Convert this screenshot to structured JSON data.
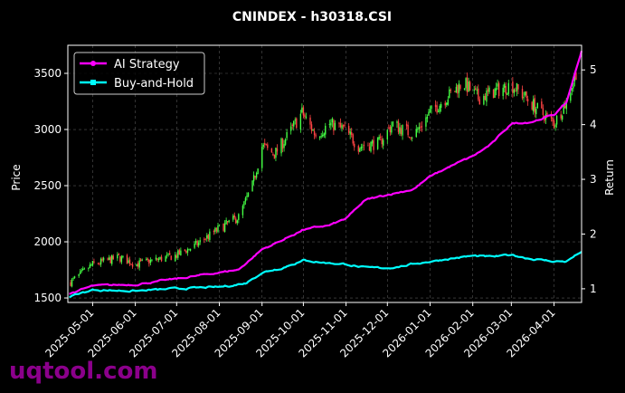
{
  "title": "CNINDEX - h30318.CSI",
  "watermark": "uqtool.com",
  "colors": {
    "background": "#000000",
    "axes": "#ffffff",
    "grid": "#555555",
    "up_candle": "#44ff44",
    "down_candle": "#ff4444",
    "ai_strategy": "#ff00ff",
    "buy_and_hold": "#00ffff",
    "watermark": "#8b008b"
  },
  "chart_data": {
    "type": "line",
    "title": "CNINDEX - h30318.CSI",
    "ylabel_left": "Price",
    "ylabel_right": "Return",
    "ylim_left": [
      1460,
      3750
    ],
    "ylim_right": [
      0.75,
      5.45
    ],
    "xlim": [
      "2025-04-13",
      "2026-04-21"
    ],
    "left_ticks": [
      1500,
      2000,
      2500,
      3000,
      3500
    ],
    "right_ticks": [
      1,
      2,
      3,
      4,
      5
    ],
    "x_tick_labels": [
      "2025-05-01",
      "2025-06-01",
      "2025-07-01",
      "2025-08-01",
      "2025-09-01",
      "2025-10-01",
      "2025-11-01",
      "2025-12-01",
      "2026-01-01",
      "2026-02-01",
      "2026-03-01",
      "2026-04-01"
    ],
    "grid": true,
    "legend_position": "top-left",
    "price_anchors": {
      "dates": [
        "2025-04-15",
        "2025-05-01",
        "2025-05-20",
        "2025-06-01",
        "2025-06-20",
        "2025-07-01",
        "2025-07-15",
        "2025-08-01",
        "2025-08-15",
        "2025-08-25",
        "2025-09-01",
        "2025-09-10",
        "2025-09-20",
        "2025-09-30",
        "2025-10-10",
        "2025-10-20",
        "2025-10-31",
        "2025-11-10",
        "2025-11-25",
        "2025-12-05",
        "2025-12-20",
        "2026-01-01",
        "2026-01-10",
        "2026-01-25",
        "2026-02-05",
        "2026-02-15",
        "2026-03-01",
        "2026-03-10",
        "2026-03-20",
        "2026-04-01",
        "2026-04-10",
        "2026-04-18"
      ],
      "values": [
        1640,
        1800,
        1860,
        1800,
        1850,
        1880,
        1970,
        2120,
        2220,
        2500,
        2850,
        2780,
        2950,
        3150,
        2950,
        3050,
        3000,
        2850,
        2880,
        3050,
        2950,
        3150,
        3250,
        3420,
        3280,
        3330,
        3400,
        3300,
        3180,
        3050,
        3250,
        3550
      ]
    },
    "series": [
      {
        "name": "AI Strategy",
        "dates": [
          "2025-04-13",
          "2025-05-01",
          "2025-06-01",
          "2025-07-01",
          "2025-07-20",
          "2025-08-01",
          "2025-08-15",
          "2025-09-01",
          "2025-09-15",
          "2025-10-01",
          "2025-10-20",
          "2025-11-01",
          "2025-11-15",
          "2025-12-01",
          "2025-12-20",
          "2026-01-01",
          "2026-01-15",
          "2026-02-01",
          "2026-02-15",
          "2026-03-01",
          "2026-03-15",
          "2026-04-01",
          "2026-04-10",
          "2026-04-21"
        ],
        "values": [
          0.9,
          1.05,
          1.08,
          1.18,
          1.25,
          1.3,
          1.35,
          1.72,
          1.88,
          2.08,
          2.16,
          2.28,
          2.62,
          2.72,
          2.82,
          3.05,
          3.23,
          3.42,
          3.65,
          4.02,
          4.05,
          4.18,
          4.4,
          5.35
        ]
      },
      {
        "name": "Buy-and-Hold",
        "dates": [
          "2025-04-13",
          "2025-05-01",
          "2025-06-01",
          "2025-07-01",
          "2025-08-01",
          "2025-08-20",
          "2025-09-01",
          "2025-09-15",
          "2025-10-01",
          "2025-10-15",
          "2025-11-01",
          "2025-11-15",
          "2025-12-01",
          "2025-12-15",
          "2026-01-01",
          "2026-01-15",
          "2026-02-01",
          "2026-02-15",
          "2026-03-01",
          "2026-03-15",
          "2026-04-01",
          "2026-04-10",
          "2026-04-21"
        ],
        "values": [
          0.85,
          0.98,
          0.96,
          1.0,
          1.03,
          1.1,
          1.3,
          1.38,
          1.52,
          1.48,
          1.45,
          1.38,
          1.38,
          1.43,
          1.5,
          1.55,
          1.6,
          1.58,
          1.62,
          1.55,
          1.5,
          1.5,
          1.68
        ]
      }
    ]
  }
}
